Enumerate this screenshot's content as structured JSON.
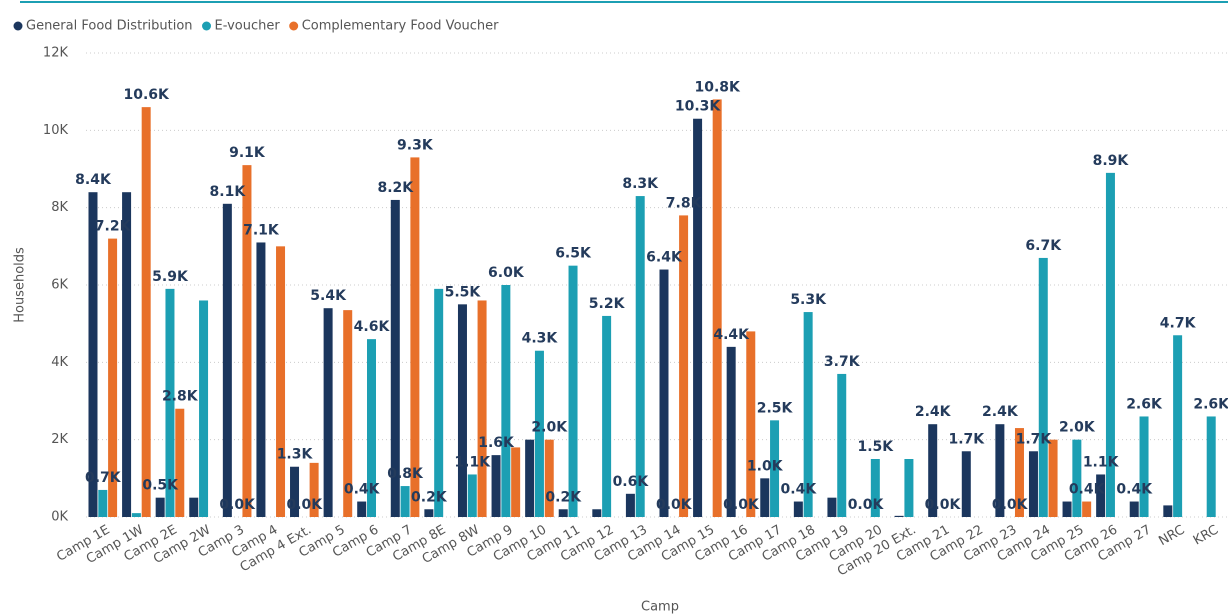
{
  "chart_data": {
    "type": "bar",
    "x_label": "Camp",
    "y_label": "Households",
    "categories": [
      "Camp 1E",
      "Camp 1W",
      "Camp 2E",
      "Camp 2W",
      "Camp 3",
      "Camp 4",
      "Camp 4 Ext.",
      "Camp 5",
      "Camp 6",
      "Camp 7",
      "Camp 8E",
      "Camp 8W",
      "Camp 9",
      "Camp 10",
      "Camp 11",
      "Camp 12",
      "Camp 13",
      "Camp 14",
      "Camp 15",
      "Camp 16",
      "Camp 17",
      "Camp 18",
      "Camp 19",
      "Camp 20",
      "Camp 20 Ext.",
      "Camp 21",
      "Camp 22",
      "Camp 23",
      "Camp 24",
      "Camp 25",
      "Camp 26",
      "Camp 27",
      "NRC",
      "KRC"
    ],
    "series": [
      {
        "name": "General Food Distribution",
        "color": "#1b365d",
        "values": [
          8400,
          8400,
          500,
          500,
          8100,
          7100,
          1300,
          5400,
          400,
          8200,
          200,
          5500,
          1600,
          2000,
          200,
          200,
          600,
          6400,
          10300,
          4400,
          1000,
          400,
          500,
          0,
          30,
          2400,
          1700,
          2400,
          1700,
          400,
          1100,
          400,
          300,
          null
        ],
        "value_labels": [
          "8.4K",
          null,
          "0.5K",
          null,
          "8.1K",
          "7.1K",
          "1.3K",
          "5.4K",
          "0.4K",
          "8.2K",
          "0.2K",
          "5.5K",
          "1.6K",
          null,
          "0.2K",
          null,
          "0.6K",
          "6.4K",
          "10.3K",
          "4.4K",
          "1.0K",
          "0.4K",
          null,
          "0.0K",
          null,
          "2.4K",
          "1.7K",
          "2.4K",
          "1.7K",
          null,
          "1.1K",
          "0.4K",
          null,
          null
        ]
      },
      {
        "name": "E-voucher",
        "color": "#1c9fb3",
        "values": [
          700,
          100,
          5900,
          5600,
          0,
          null,
          0,
          null,
          4600,
          800,
          5900,
          1100,
          6000,
          4300,
          6500,
          5200,
          8300,
          0,
          null,
          0,
          2500,
          5300,
          3700,
          1500,
          1500,
          0,
          null,
          0,
          6700,
          2000,
          8900,
          2600,
          4700,
          2600
        ],
        "value_labels": [
          "0.7K",
          null,
          "5.9K",
          null,
          "0.0K",
          null,
          "0.0K",
          null,
          "4.6K",
          "0.8K",
          null,
          "1.1K",
          "6.0K",
          "4.3K",
          "6.5K",
          "5.2K",
          "8.3K",
          "0.0K",
          null,
          "0.0K",
          "2.5K",
          "5.3K",
          "3.7K",
          "1.5K",
          null,
          "0.0K",
          null,
          "0.0K",
          "6.7K",
          "2.0K",
          "8.9K",
          "2.6K",
          "4.7K",
          "2.6K"
        ]
      },
      {
        "name": "Complementary Food Voucher",
        "color": "#e8702a",
        "values": [
          7200,
          10600,
          2800,
          null,
          9100,
          7000,
          1400,
          5350,
          null,
          9300,
          null,
          5600,
          1800,
          2000,
          null,
          null,
          null,
          7800,
          10800,
          4800,
          null,
          null,
          null,
          null,
          null,
          null,
          null,
          2300,
          2000,
          400,
          null,
          null,
          null,
          null
        ],
        "value_labels": [
          "7.2K",
          "10.6K",
          "2.8K",
          null,
          "9.1K",
          null,
          null,
          null,
          null,
          "9.3K",
          null,
          null,
          null,
          "2.0K",
          null,
          null,
          null,
          "7.8K",
          "10.8K",
          null,
          null,
          null,
          null,
          null,
          null,
          null,
          null,
          null,
          null,
          "0.4K",
          null,
          null,
          null,
          null
        ]
      }
    ],
    "ylim": [
      0,
      12000
    ],
    "yticks": [
      {
        "value": 0,
        "label": "0K"
      },
      {
        "value": 2000,
        "label": "2K"
      },
      {
        "value": 4000,
        "label": "4K"
      },
      {
        "value": 6000,
        "label": "6K"
      },
      {
        "value": 8000,
        "label": "8K"
      },
      {
        "value": 10000,
        "label": "10K"
      },
      {
        "value": 12000,
        "label": "12K"
      }
    ],
    "grid": true,
    "legend": "top-left"
  }
}
